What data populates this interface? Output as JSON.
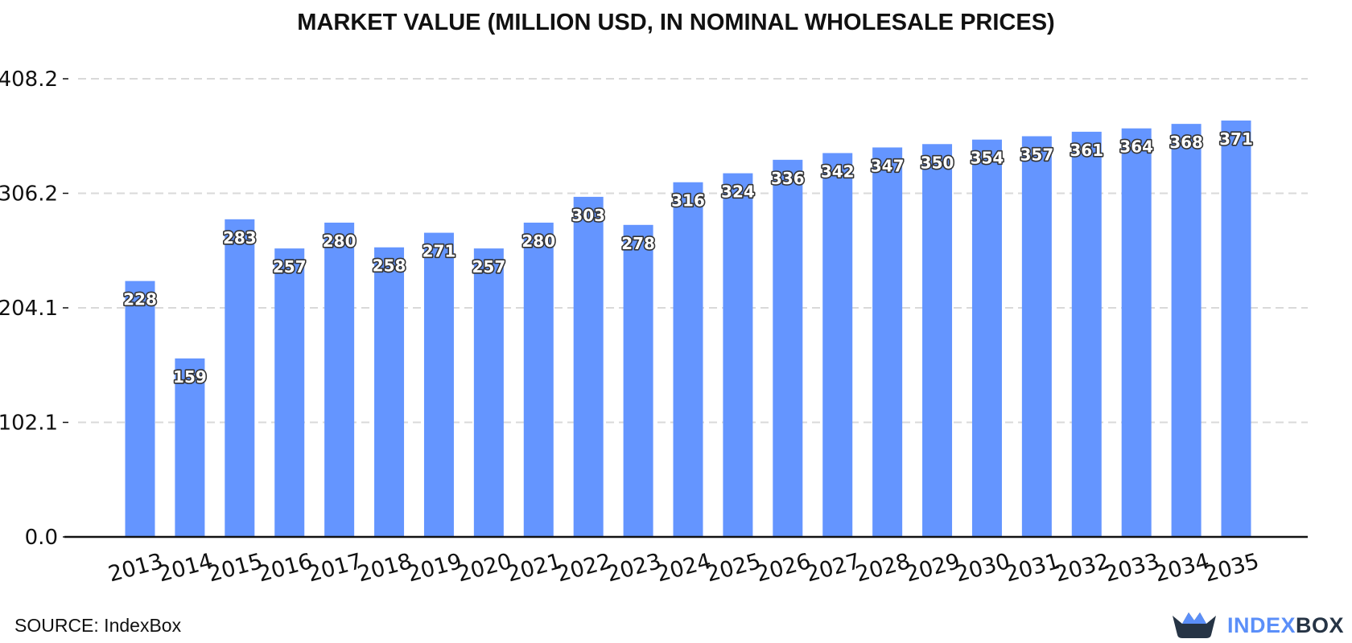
{
  "chart_data": {
    "type": "bar",
    "title": "MARKET VALUE (MILLION USD, IN NOMINAL WHOLESALE PRICES)",
    "categories": [
      "2013",
      "2014",
      "2015",
      "2016",
      "2017",
      "2018",
      "2019",
      "2020",
      "2021",
      "2022",
      "2023",
      "2024",
      "2025",
      "2026",
      "2027",
      "2028",
      "2029",
      "2030",
      "2031",
      "2032",
      "2033",
      "2034",
      "2035"
    ],
    "values": [
      228,
      159,
      283,
      257,
      280,
      258,
      271,
      257,
      280,
      303,
      278,
      316,
      324,
      336,
      342,
      347,
      350,
      354,
      357,
      361,
      364,
      368,
      371
    ],
    "y_ticks": [
      "0.0",
      "102.1",
      "204.1",
      "306.2",
      "408.2"
    ],
    "ylim": [
      0,
      408.2
    ],
    "grid": "horizontal-dashed",
    "bar_color": "#6495ff"
  },
  "source": "SOURCE: IndexBox",
  "brand": {
    "part1": "INDEX",
    "part2": "BOX",
    "colors": {
      "part1": "#5b8ff9",
      "part2": "#263445"
    },
    "icon": "crown-box-icon"
  }
}
